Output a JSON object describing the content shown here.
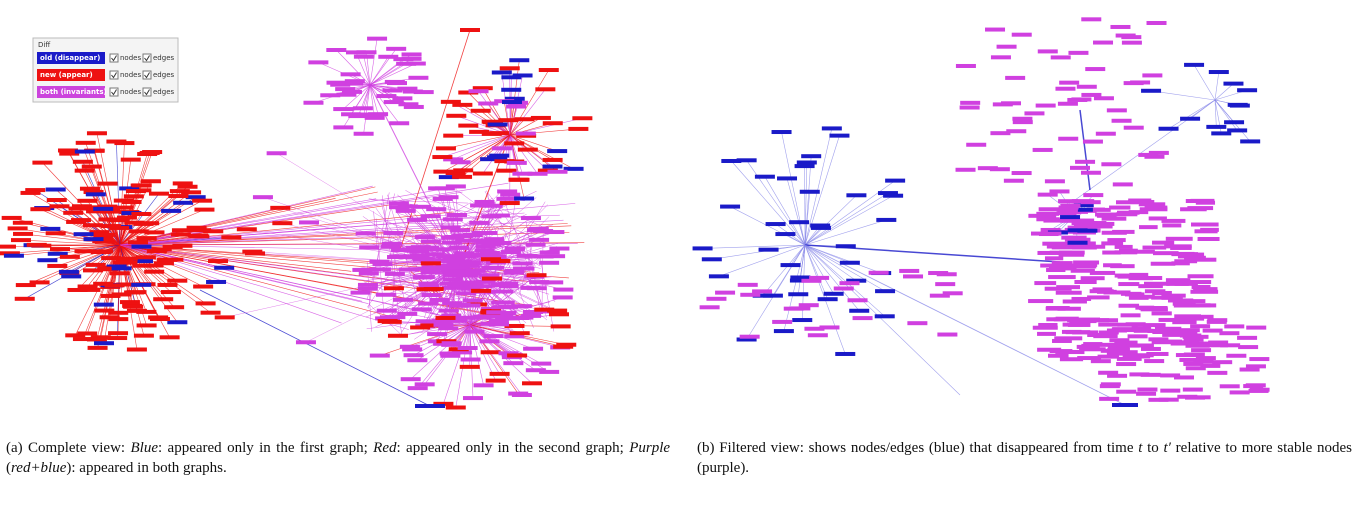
{
  "legend": {
    "title": "Diff",
    "rows": [
      {
        "label": "old (disappear)",
        "nodes": "nodes",
        "edges": "edges"
      },
      {
        "label": "new (appear)",
        "nodes": "nodes",
        "edges": "edges"
      },
      {
        "label": "both (invariants)",
        "nodes": "nodes",
        "edges": "edges"
      }
    ]
  },
  "captions": {
    "a": [
      "(a) Complete view: ",
      "Blue",
      ": appeared only in the first graph; ",
      "Red",
      ": appeared only in the second graph; ",
      "Purple",
      " (",
      "red+blue",
      "): appeared in both graphs."
    ],
    "b": [
      "(b) Filtered view: shows nodes/edges (blue) that disappeared from time ",
      "t",
      " to ",
      "t′",
      " relative to more stable nodes (purple)."
    ]
  }
}
